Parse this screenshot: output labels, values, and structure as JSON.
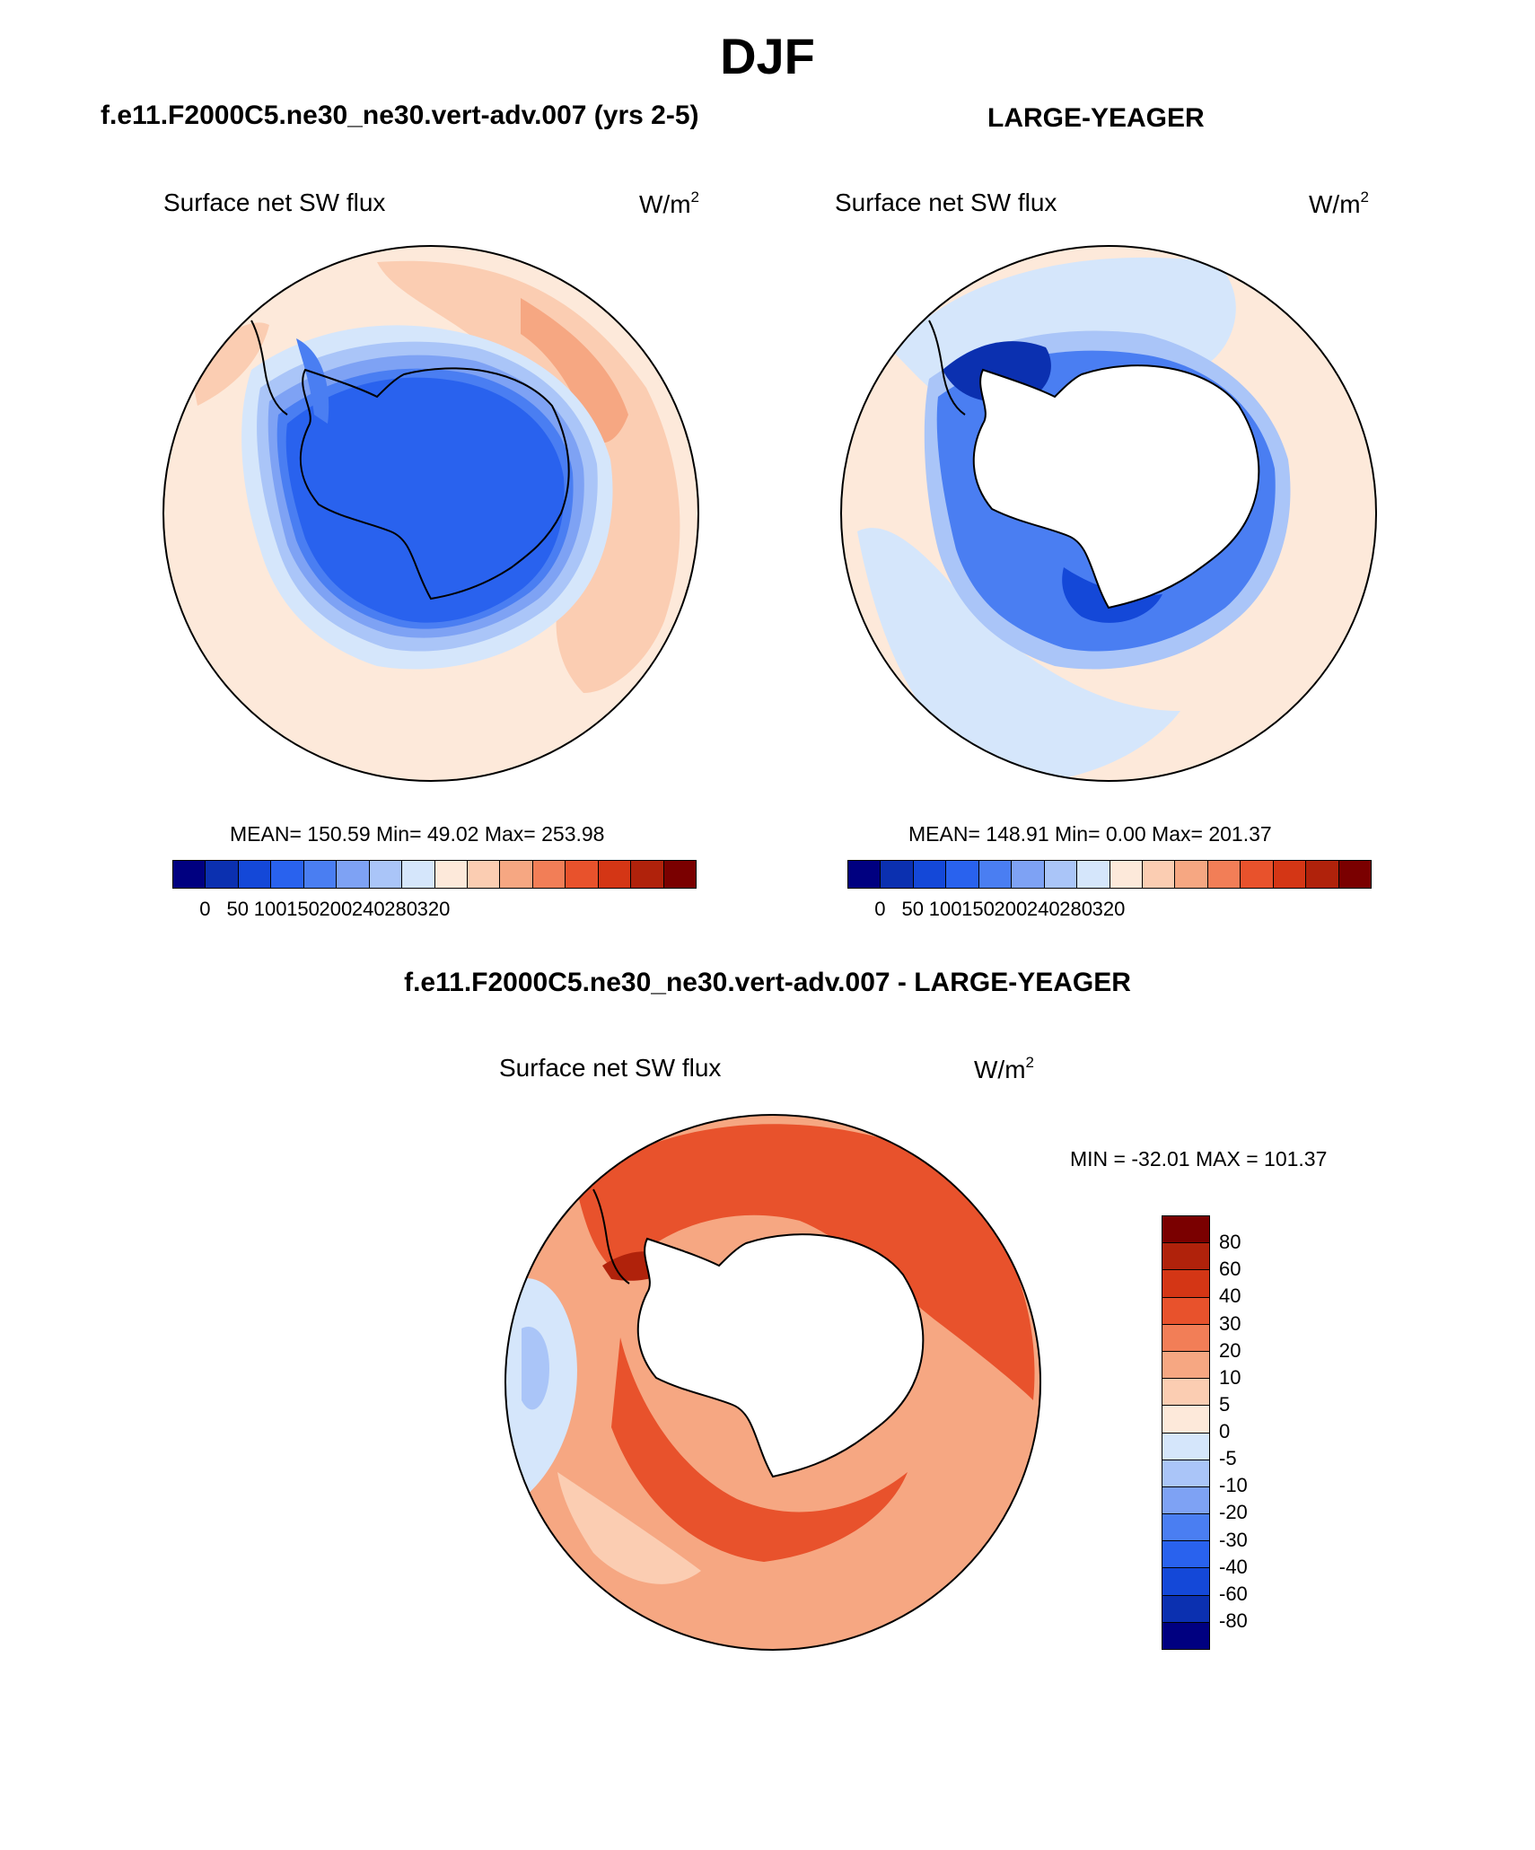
{
  "title": "DJF",
  "colors": {
    "abs_scale": [
      "#000080",
      "#0b30b0",
      "#1448d8",
      "#2962ee",
      "#4a7ef2",
      "#7ea2f4",
      "#aac5f8",
      "#d5e6fb",
      "#fde9da",
      "#fbcdb2",
      "#f6a782",
      "#f27e57",
      "#e8522c",
      "#d43615",
      "#b0220b",
      "#7a0000"
    ],
    "diff_scale": [
      "#7a0000",
      "#b0220b",
      "#d43615",
      "#e8522c",
      "#f27e57",
      "#f6a782",
      "#fbcdb2",
      "#fde9da",
      "#d5e6fb",
      "#aac5f8",
      "#7ea2f4",
      "#4a7ef2",
      "#2962ee",
      "#1448d8",
      "#0b30b0",
      "#000080"
    ],
    "land": "#ffffff",
    "outline": "#000000"
  },
  "chart_data": [
    {
      "type": "heatmap",
      "projection": "south-polar-stereographic",
      "case_title": "f.e11.F2000C5.ne30_ne30.vert-adv.007 (yrs 2-5)",
      "variable": "Surface net SW flux",
      "units": "W/m",
      "units_sup": "2",
      "stats": "MEAN= 150.59  Min=  49.02  Max= 253.98",
      "mean": 150.59,
      "min": 49.02,
      "max": 253.98,
      "colorbar_ticks": [
        "0",
        "50",
        "100",
        "150",
        "200",
        "240",
        "280",
        "320"
      ]
    },
    {
      "type": "heatmap",
      "projection": "south-polar-stereographic",
      "case_title": "LARGE-YEAGER",
      "variable": "Surface net SW flux",
      "units": "W/m",
      "units_sup": "2",
      "stats": "MEAN= 148.91  Min=   0.00  Max= 201.37",
      "mean": 148.91,
      "min": 0.0,
      "max": 201.37,
      "colorbar_ticks": [
        "0",
        "50",
        "100",
        "150",
        "200",
        "240",
        "280",
        "320"
      ]
    },
    {
      "type": "heatmap",
      "projection": "south-polar-stereographic",
      "case_title": "f.e11.F2000C5.ne30_ne30.vert-adv.007 - LARGE-YEAGER",
      "variable": "Surface net SW flux",
      "units": "W/m",
      "units_sup": "2",
      "stats": "MIN = -32.01 MAX = 101.37",
      "min": -32.01,
      "max": 101.37,
      "colorbar_ticks": [
        "80",
        "60",
        "40",
        "30",
        "20",
        "10",
        "5",
        "0",
        "-5",
        "-10",
        "-20",
        "-30",
        "-40",
        "-60",
        "-80"
      ]
    }
  ]
}
